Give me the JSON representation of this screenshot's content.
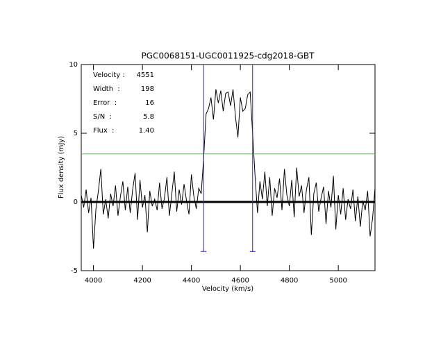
{
  "chart_data": {
    "type": "line",
    "title": "PGC0068151-UGC0011925-cdg2018-GBT",
    "x_label": "Velocity (km/s)",
    "y_label": "Flux density (mJy)",
    "xlim": [
      3950,
      5150
    ],
    "ylim": [
      -5,
      10
    ],
    "xticks": [
      4000,
      4200,
      4400,
      4600,
      4800,
      5000
    ],
    "yticks": [
      -5,
      0,
      5,
      10
    ],
    "series": [
      {
        "color": "#000000",
        "x": [
          3950,
          3960,
          3970,
          3980,
          3990,
          4000,
          4010,
          4020,
          4030,
          4040,
          4050,
          4060,
          4070,
          4080,
          4090,
          4100,
          4110,
          4120,
          4130,
          4140,
          4150,
          4160,
          4170,
          4180,
          4190,
          4200,
          4210,
          4220,
          4230,
          4240,
          4250,
          4260,
          4270,
          4280,
          4290,
          4300,
          4310,
          4320,
          4330,
          4340,
          4350,
          4360,
          4370,
          4380,
          4390,
          4400,
          4410,
          4420,
          4430,
          4440,
          4450,
          4460,
          4470,
          4480,
          4490,
          4500,
          4510,
          4520,
          4530,
          4540,
          4550,
          4560,
          4570,
          4580,
          4590,
          4600,
          4610,
          4620,
          4630,
          4640,
          4650,
          4660,
          4670,
          4680,
          4690,
          4700,
          4710,
          4720,
          4730,
          4740,
          4750,
          4760,
          4770,
          4780,
          4790,
          4800,
          4810,
          4820,
          4830,
          4840,
          4850,
          4860,
          4870,
          4880,
          4890,
          4900,
          4910,
          4920,
          4930,
          4940,
          4950,
          4960,
          4970,
          4980,
          4990,
          5000,
          5010,
          5020,
          5030,
          5040,
          5050,
          5060,
          5070,
          5080,
          5090,
          5100,
          5110,
          5120,
          5130,
          5140,
          5150
        ],
        "values": [
          0.5,
          -0.4,
          0.9,
          -0.8,
          0.3,
          -3.4,
          -0.5,
          0.8,
          2.4,
          -0.9,
          0.2,
          -1.2,
          0.6,
          -0.3,
          1.2,
          -1.0,
          0.4,
          1.5,
          -0.6,
          1.1,
          -0.8,
          0.9,
          2.1,
          -1.3,
          1.6,
          -0.4,
          0.5,
          -2.2,
          0.8,
          -0.3,
          0.2,
          -0.6,
          1.4,
          -0.5,
          0.3,
          1.8,
          -1.0,
          0.6,
          2.2,
          -0.7,
          0.9,
          -0.2,
          1.3,
          0.1,
          -0.9,
          2.0,
          0.4,
          -0.5,
          1.0,
          0.6,
          3.2,
          6.4,
          6.8,
          7.6,
          6.0,
          8.2,
          7.2,
          8.1,
          6.6,
          7.9,
          8.0,
          7.0,
          8.2,
          6.2,
          4.7,
          7.6,
          6.6,
          6.8,
          7.8,
          8.0,
          5.0,
          1.9,
          -0.8,
          1.5,
          0.2,
          2.2,
          -0.3,
          1.8,
          -1.0,
          1.0,
          0.3,
          1.7,
          -0.6,
          2.4,
          0.5,
          -0.3,
          1.6,
          -1.1,
          2.5,
          0.4,
          1.2,
          -0.8,
          0.9,
          1.8,
          -2.4,
          0.6,
          1.4,
          -0.7,
          0.3,
          1.1,
          -1.6,
          0.8,
          -0.4,
          1.9,
          -2.0,
          0.5,
          -0.9,
          1.0,
          -1.3,
          0.2,
          -0.5,
          0.9,
          -1.4,
          0.4,
          -1.8,
          0.1,
          -0.6,
          0.8,
          -2.5,
          -1.2,
          1.0
        ]
      }
    ],
    "vlines": [
      4450,
      4650
    ],
    "vline_color": "#3a20cc",
    "vline_marker_y": -3.6,
    "hline": 3.5,
    "hline_color": "#22dd22",
    "annotations": [
      {
        "label": "Velocity :",
        "value": "4551"
      },
      {
        "label": "Width  :",
        "value": "198"
      },
      {
        "label": "Error  :",
        "value": "16"
      },
      {
        "label": "S/N  :",
        "value": "5.8"
      },
      {
        "label": "Flux  :",
        "value": "1.40"
      }
    ],
    "annotation_color": "#2a18b0"
  }
}
